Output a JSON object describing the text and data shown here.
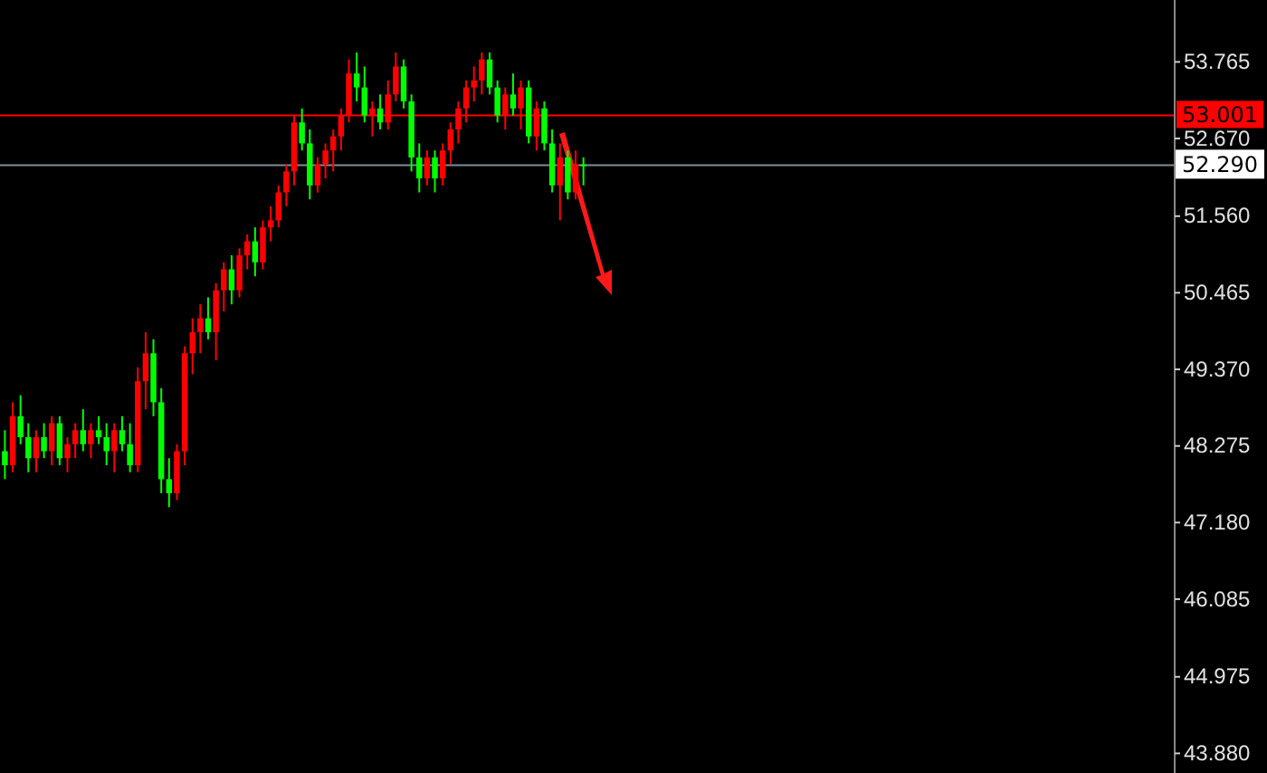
{
  "chart_data": {
    "type": "candlestick",
    "categories": [
      null,
      null,
      null,
      null,
      null,
      null,
      null,
      null,
      null,
      null,
      null,
      null,
      null,
      null,
      null,
      null,
      null,
      null,
      null,
      null,
      null,
      null,
      null,
      null,
      null,
      null,
      null,
      null,
      null,
      null,
      null,
      null,
      null,
      null,
      null,
      null,
      null,
      null,
      null,
      null,
      null,
      null,
      null,
      null,
      null,
      null,
      null,
      null,
      null,
      null,
      null,
      null,
      null,
      null,
      null,
      null,
      null,
      null,
      null,
      null,
      null,
      null,
      null,
      null,
      null,
      null,
      null,
      null,
      null,
      null,
      null,
      null,
      null,
      null,
      null,
      null,
      null,
      null,
      null,
      null,
      null,
      null,
      null,
      null,
      null,
      null,
      null,
      null,
      null,
      null,
      null,
      null,
      null,
      null,
      null,
      null,
      null,
      null,
      null,
      null,
      null,
      null,
      null,
      null,
      null,
      null,
      null,
      null,
      null,
      null,
      null,
      null,
      null,
      null,
      null,
      null,
      null,
      null,
      null,
      null,
      null,
      null,
      null,
      null,
      null,
      null,
      null,
      null,
      null,
      null,
      null,
      null,
      null,
      null,
      null,
      null,
      null,
      null,
      null,
      null,
      null,
      null,
      null,
      null,
      null,
      null,
      null,
      null,
      null,
      null
    ],
    "ohlc": [
      [
        48.2,
        48.5,
        47.8,
        48.0
      ],
      [
        48.0,
        48.9,
        47.9,
        48.7
      ],
      [
        48.7,
        49.0,
        48.3,
        48.4
      ],
      [
        48.4,
        48.6,
        47.9,
        48.1
      ],
      [
        48.1,
        48.5,
        47.9,
        48.4
      ],
      [
        48.4,
        48.6,
        48.1,
        48.2
      ],
      [
        48.2,
        48.7,
        48.0,
        48.6
      ],
      [
        48.6,
        48.7,
        48.0,
        48.1
      ],
      [
        48.1,
        48.4,
        47.9,
        48.3
      ],
      [
        48.3,
        48.6,
        48.1,
        48.5
      ],
      [
        48.5,
        48.8,
        48.2,
        48.3
      ],
      [
        48.3,
        48.6,
        48.1,
        48.5
      ],
      [
        48.5,
        48.7,
        48.3,
        48.4
      ],
      [
        48.4,
        48.6,
        48.0,
        48.2
      ],
      [
        48.2,
        48.6,
        47.9,
        48.5
      ],
      [
        48.5,
        48.7,
        48.2,
        48.3
      ],
      [
        48.3,
        48.6,
        47.9,
        48.0
      ],
      [
        48.0,
        49.4,
        47.9,
        49.2
      ],
      [
        49.2,
        49.9,
        48.8,
        49.6
      ],
      [
        49.6,
        49.8,
        48.7,
        48.9
      ],
      [
        48.9,
        49.1,
        47.6,
        47.8
      ],
      [
        47.8,
        48.1,
        47.4,
        47.6
      ],
      [
        47.6,
        48.3,
        47.5,
        48.2
      ],
      [
        48.2,
        49.7,
        48.0,
        49.6
      ],
      [
        49.6,
        50.1,
        49.3,
        49.9
      ],
      [
        49.9,
        50.3,
        49.6,
        50.1
      ],
      [
        50.1,
        50.4,
        49.8,
        49.9
      ],
      [
        49.9,
        50.6,
        49.5,
        50.5
      ],
      [
        50.5,
        50.9,
        50.2,
        50.8
      ],
      [
        50.8,
        51.0,
        50.3,
        50.5
      ],
      [
        50.5,
        51.1,
        50.4,
        51.0
      ],
      [
        51.0,
        51.3,
        50.8,
        51.2
      ],
      [
        51.2,
        51.4,
        50.7,
        50.9
      ],
      [
        50.9,
        51.5,
        50.8,
        51.4
      ],
      [
        51.4,
        51.7,
        51.2,
        51.5
      ],
      [
        51.5,
        52.0,
        51.4,
        51.9
      ],
      [
        51.9,
        52.3,
        51.7,
        52.2
      ],
      [
        52.2,
        53.0,
        52.0,
        52.9
      ],
      [
        52.9,
        53.1,
        52.5,
        52.6
      ],
      [
        52.6,
        52.8,
        51.8,
        52.0
      ],
      [
        52.0,
        52.4,
        51.9,
        52.3
      ],
      [
        52.3,
        52.6,
        52.1,
        52.5
      ],
      [
        52.5,
        52.8,
        52.2,
        52.7
      ],
      [
        52.7,
        53.1,
        52.5,
        53.0
      ],
      [
        53.0,
        53.8,
        52.9,
        53.6
      ],
      [
        53.6,
        53.9,
        53.2,
        53.4
      ],
      [
        53.4,
        53.7,
        52.9,
        53.0
      ],
      [
        53.0,
        53.2,
        52.7,
        53.1
      ],
      [
        53.1,
        53.3,
        52.8,
        52.9
      ],
      [
        52.9,
        53.5,
        52.8,
        53.3
      ],
      [
        53.3,
        53.9,
        53.2,
        53.7
      ],
      [
        53.7,
        53.8,
        53.1,
        53.2
      ],
      [
        53.2,
        53.3,
        52.2,
        52.4
      ],
      [
        52.4,
        52.6,
        51.9,
        52.1
      ],
      [
        52.1,
        52.5,
        52.0,
        52.4
      ],
      [
        52.4,
        52.5,
        51.9,
        52.1
      ],
      [
        52.1,
        52.6,
        52.0,
        52.5
      ],
      [
        52.5,
        52.9,
        52.3,
        52.8
      ],
      [
        52.8,
        53.2,
        52.6,
        53.1
      ],
      [
        53.1,
        53.5,
        52.9,
        53.4
      ],
      [
        53.4,
        53.7,
        53.2,
        53.5
      ],
      [
        53.5,
        53.9,
        53.3,
        53.8
      ],
      [
        53.8,
        53.9,
        53.3,
        53.4
      ],
      [
        53.4,
        53.5,
        52.9,
        53.0
      ],
      [
        53.0,
        53.4,
        52.8,
        53.3
      ],
      [
        53.3,
        53.6,
        53.0,
        53.1
      ],
      [
        53.1,
        53.5,
        52.8,
        53.4
      ],
      [
        53.4,
        53.5,
        52.6,
        52.7
      ],
      [
        52.7,
        53.2,
        52.5,
        53.1
      ],
      [
        53.1,
        53.2,
        52.5,
        52.6
      ],
      [
        52.6,
        52.8,
        51.9,
        52.0
      ],
      [
        52.0,
        52.6,
        51.5,
        52.4
      ],
      [
        52.4,
        52.5,
        51.8,
        51.9
      ],
      [
        51.9,
        52.5,
        51.8,
        52.3
      ],
      [
        52.3,
        52.4,
        52.0,
        52.29
      ],
      null,
      null,
      null,
      null,
      null,
      null,
      null,
      null,
      null,
      null,
      null,
      null,
      null,
      null,
      null,
      null,
      null,
      null,
      null,
      null,
      null,
      null,
      null,
      null,
      null,
      null,
      null,
      null,
      null,
      null,
      null,
      null,
      null,
      null,
      null,
      null,
      null,
      null,
      null,
      null,
      null,
      null,
      null,
      null,
      null,
      null,
      null,
      null,
      null,
      null,
      null,
      null,
      null,
      null,
      null,
      null,
      null,
      null,
      null,
      null,
      null,
      null,
      null,
      null,
      null,
      null,
      null,
      null,
      null,
      null,
      null,
      null,
      null,
      null,
      null
    ],
    "colors": [
      "#00ff00",
      "#ff0000",
      "#00ff00",
      "#00ff00",
      "#ff0000",
      "#00ff00",
      "#ff0000",
      "#00ff00",
      "#ff0000",
      "#ff0000",
      "#00ff00",
      "#ff0000",
      "#00ff00",
      "#00ff00",
      "#ff0000",
      "#00ff00",
      "#00ff00",
      "#ff0000",
      "#ff0000",
      "#00ff00",
      "#00ff00",
      "#00ff00",
      "#ff0000",
      "#ff0000",
      "#ff0000",
      "#ff0000",
      "#00ff00",
      "#ff0000",
      "#ff0000",
      "#00ff00",
      "#ff0000",
      "#ff0000",
      "#00ff00",
      "#ff0000",
      "#ff0000",
      "#ff0000",
      "#ff0000",
      "#ff0000",
      "#00ff00",
      "#00ff00",
      "#ff0000",
      "#ff0000",
      "#ff0000",
      "#ff0000",
      "#ff0000",
      "#00ff00",
      "#00ff00",
      "#ff0000",
      "#00ff00",
      "#ff0000",
      "#ff0000",
      "#00ff00",
      "#00ff00",
      "#00ff00",
      "#ff0000",
      "#00ff00",
      "#ff0000",
      "#ff0000",
      "#ff0000",
      "#ff0000",
      "#ff0000",
      "#ff0000",
      "#00ff00",
      "#00ff00",
      "#ff0000",
      "#00ff00",
      "#ff0000",
      "#00ff00",
      "#ff0000",
      "#00ff00",
      "#00ff00",
      "#ff0000",
      "#00ff00",
      "#ff0000",
      "#00ff00",
      null,
      null,
      null,
      null,
      null,
      null,
      null,
      null,
      null,
      null,
      null,
      null,
      null,
      null,
      null,
      null,
      null,
      null,
      null,
      null,
      null,
      null,
      null,
      null,
      null,
      null,
      null,
      null,
      null,
      null,
      null,
      null,
      null,
      null,
      null,
      null,
      null,
      null,
      null,
      null,
      null,
      null,
      null,
      null,
      null,
      null,
      null,
      null,
      null,
      null,
      null,
      null,
      null,
      null,
      null,
      null,
      null,
      null,
      null,
      null,
      null,
      null,
      null,
      null,
      null,
      null,
      null,
      null,
      null,
      null,
      null,
      null,
      null,
      null,
      null
    ],
    "ylim": [
      43.6,
      54.65
    ],
    "yticks": [
      {
        "value": 53.765,
        "label": "53.765"
      },
      {
        "value": 52.67,
        "label": "52.670"
      },
      {
        "value": 51.56,
        "label": "51.560"
      },
      {
        "value": 50.465,
        "label": "50.465"
      },
      {
        "value": 49.37,
        "label": "49.370"
      },
      {
        "value": 48.275,
        "label": "48.275"
      },
      {
        "value": 47.18,
        "label": "47.180"
      },
      {
        "value": 46.085,
        "label": "46.085"
      },
      {
        "value": 44.975,
        "label": "44.975"
      },
      {
        "value": 43.88,
        "label": "43.880"
      }
    ],
    "tick_labels": "y",
    "grid": false,
    "ref_lines": [
      {
        "axis": "y",
        "value": 53.001,
        "label": "53.001",
        "color": "#ff0000"
      },
      {
        "axis": "y",
        "value": 52.29,
        "label": "52.290",
        "color": "#7f8c99"
      }
    ]
  }
}
